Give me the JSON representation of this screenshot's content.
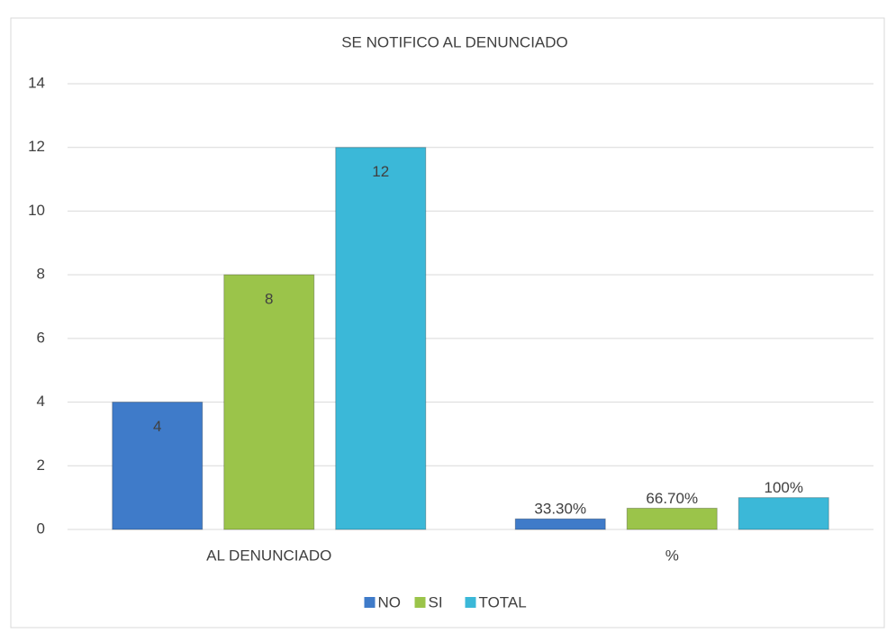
{
  "chart_data": {
    "type": "bar",
    "title": "SE NOTIFICO AL DENUNCIADO",
    "categories": [
      "AL DENUNCIADO",
      "%"
    ],
    "series": [
      {
        "name": "NO",
        "color": "#3f7bc9",
        "values": [
          4,
          0.333
        ],
        "value_labels": [
          "4",
          "33.30%"
        ]
      },
      {
        "name": "SI",
        "color": "#9bc44a",
        "values": [
          8,
          0.667
        ],
        "value_labels": [
          "8",
          "66.70%"
        ]
      },
      {
        "name": "TOTAL",
        "color": "#3bb8d8",
        "values": [
          12,
          1
        ],
        "value_labels": [
          "12",
          "100%"
        ]
      }
    ],
    "ylim": [
      0,
      14
    ],
    "yticks": [
      0,
      2,
      4,
      6,
      8,
      10,
      12,
      14
    ],
    "grid": true,
    "legend": "bottom"
  }
}
